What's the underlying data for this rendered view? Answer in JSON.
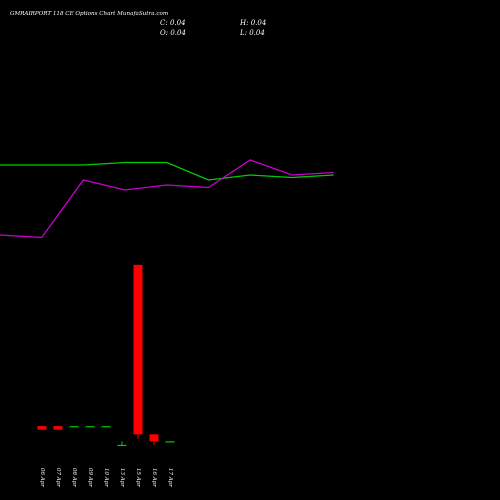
{
  "header": {
    "title": "GMRAIRPORT 118  CE Options  Chart MunafaSutra.com",
    "close": "C: 0.04",
    "open": "O: 0.04",
    "high": "H: 0.04",
    "low": "L: 0.04"
  },
  "colors": {
    "background": "#000000",
    "green_line": "#00cc00",
    "magenta_line": "#cc00cc",
    "candle_up": "#00cc00",
    "candle_down": "#ff0000",
    "text": "#ffffff"
  },
  "chart_data": {
    "type": "candlestick",
    "grid": false,
    "date_labels": [
      "06 Apr",
      "07 Apr",
      "08 Apr",
      "09 Apr",
      "10 Apr",
      "13 Apr",
      "15 Apr",
      "16 Apr",
      "17 Apr"
    ],
    "candles": [
      {
        "date": "06 Apr",
        "open": 0.17,
        "close": 0.14,
        "high": 0.17,
        "low": 0.14
      },
      {
        "date": "07 Apr",
        "open": 0.17,
        "close": 0.14,
        "high": 0.17,
        "low": 0.14
      },
      {
        "date": "08 Apr",
        "open": 0.17,
        "close": 0.17,
        "high": 0.17,
        "low": 0.17
      },
      {
        "date": "09 Apr",
        "open": 0.17,
        "close": 0.17,
        "high": 0.17,
        "low": 0.17
      },
      {
        "date": "10 Apr",
        "open": 0.17,
        "close": 0.17,
        "high": 0.17,
        "low": 0.17
      },
      {
        "date": "13 Apr",
        "open": 0.01,
        "close": 0.01,
        "high": 0.04,
        "low": 0.01
      },
      {
        "date": "15 Apr",
        "open": 1.55,
        "close": 0.1,
        "high": 1.55,
        "low": 0.06
      },
      {
        "date": "16 Apr",
        "open": 0.1,
        "close": 0.04,
        "high": 0.1,
        "low": 0.01
      },
      {
        "date": "17 Apr",
        "open": 0.04,
        "close": 0.04,
        "high": 0.04,
        "low": 0.04
      }
    ],
    "series": [
      {
        "values": [
          0.9,
          0.9,
          0.9,
          0.91,
          0.91,
          0.84,
          0.86,
          0.85,
          0.86
        ]
      },
      {
        "values": [
          0.62,
          0.61,
          0.84,
          0.8,
          0.82,
          0.81,
          0.92,
          0.86,
          0.87
        ]
      }
    ]
  }
}
